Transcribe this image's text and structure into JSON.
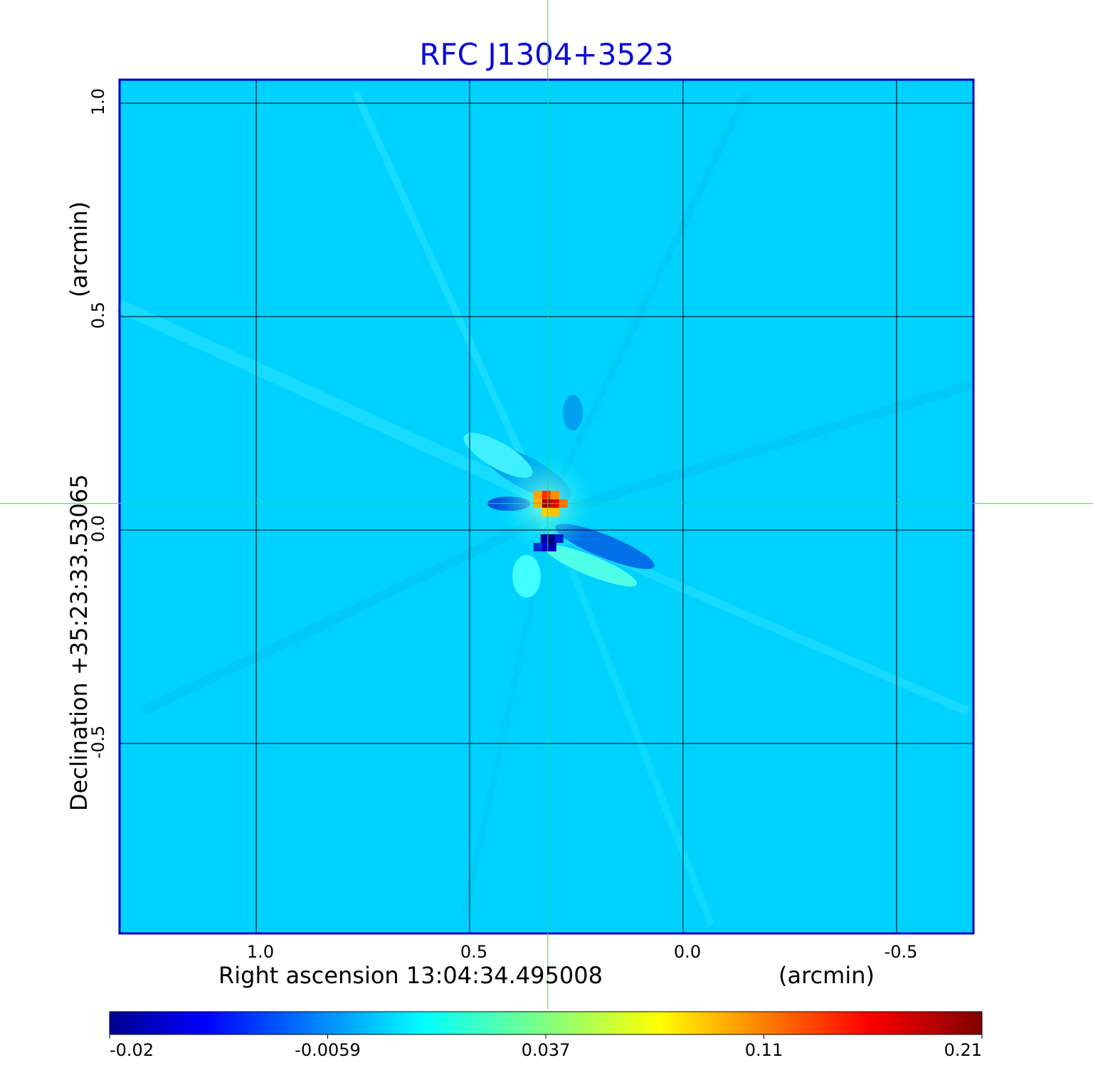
{
  "chart_data": {
    "type": "heatmap",
    "title": "RFC J1304+3523",
    "xlabel": "Right ascension  13:04:34.495008",
    "xunit": "(arcmin)",
    "ylabel": "Declination  +35:23:33.53065",
    "yunit": "(arcmin)",
    "xlim": [
      1.32,
      -0.68
    ],
    "ylim": [
      -0.945,
      1.055
    ],
    "x_ticks": [
      "1.0",
      "0.5",
      "0.0",
      "-0.5"
    ],
    "x_tick_values": [
      1.0,
      0.5,
      0.0,
      -0.5
    ],
    "y_ticks": [
      "1.0",
      "0.5",
      "0.0",
      "-0.5"
    ],
    "y_tick_values": [
      1.0,
      0.5,
      0.0,
      -0.5
    ],
    "grid": true,
    "crosshair": {
      "x": 0.317,
      "y": 0.062
    },
    "colorbar": {
      "colormap": "jet",
      "tick_labels": [
        "-0.02",
        "-0.0059",
        "0.037",
        "0.11",
        "0.21"
      ]
    },
    "features": [
      {
        "x": 0.317,
        "y": 0.062,
        "value": 0.21,
        "note": "peak"
      },
      {
        "x": 0.317,
        "y": -0.01,
        "value": -0.02,
        "note": "negative"
      }
    ]
  },
  "colors": {
    "title": "#0a0ad8",
    "frame": "#0000cc",
    "crosshair": "#33dd33",
    "background_field": "#00d2ff"
  }
}
